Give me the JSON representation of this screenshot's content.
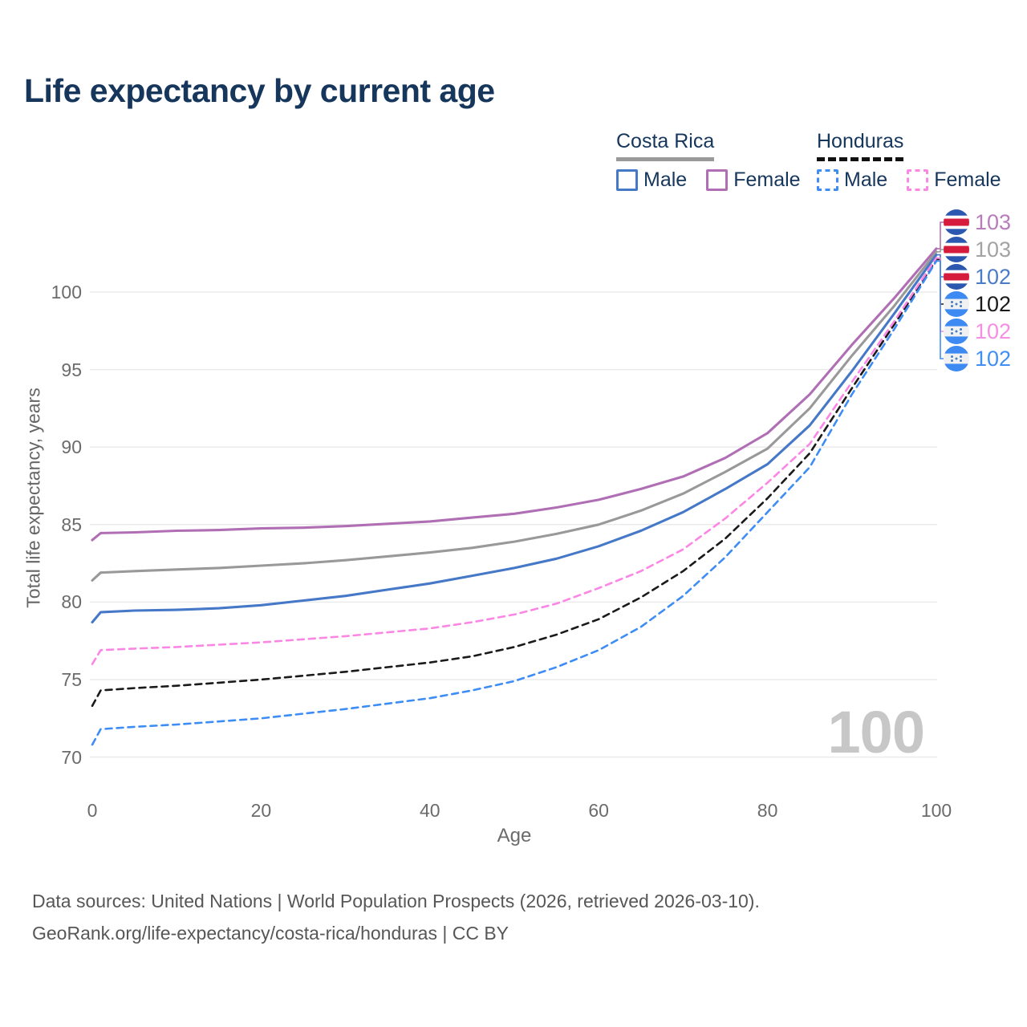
{
  "title": "Life expectancy by current age",
  "legend": {
    "groups": [
      {
        "label": "Costa Rica",
        "line_style": "solid",
        "underline_color": "#9a9a9a",
        "items": [
          {
            "label": "Male",
            "color": "#4678c8",
            "dashed": false
          },
          {
            "label": "Female",
            "color": "#b06fb4",
            "dashed": false
          }
        ]
      },
      {
        "label": "Honduras",
        "line_style": "dashed",
        "underline_color": "#111111",
        "items": [
          {
            "label": "Male",
            "color": "#3e8df5",
            "dashed": true
          },
          {
            "label": "Female",
            "color": "#fb87e5",
            "dashed": true
          }
        ]
      }
    ]
  },
  "chart_data": {
    "type": "line",
    "title": "Life expectancy by current age",
    "xlabel": "Age",
    "ylabel": "Total life expectancy, years",
    "xlim": [
      0,
      100
    ],
    "ylim": [
      70,
      103
    ],
    "xticks": [
      0,
      20,
      40,
      60,
      80,
      100
    ],
    "yticks": [
      70,
      75,
      80,
      85,
      90,
      95,
      100
    ],
    "grid": "horizontal-only",
    "gridline_color": "#ebebeb",
    "watermark": "100",
    "x": [
      0,
      1,
      5,
      10,
      15,
      20,
      25,
      30,
      35,
      40,
      45,
      50,
      55,
      60,
      65,
      70,
      75,
      80,
      85,
      90,
      95,
      100
    ],
    "series": [
      {
        "name": "Costa Rica Female",
        "country": "Costa Rica",
        "sex": "Female",
        "color": "#b06fb4",
        "dashed": false,
        "end_label": "103",
        "end_label_color": "#b87cba",
        "flag": "costa-rica",
        "values": [
          84.0,
          84.45,
          84.5,
          84.6,
          84.65,
          84.75,
          84.8,
          84.9,
          85.05,
          85.2,
          85.45,
          85.7,
          86.1,
          86.6,
          87.3,
          88.1,
          89.3,
          90.9,
          93.4,
          96.6,
          99.6,
          102.8
        ]
      },
      {
        "name": "Costa Rica",
        "country": "Costa Rica",
        "sex": "Both",
        "color": "#999999",
        "dashed": false,
        "end_label": "103",
        "end_label_color": "#a3a3a3",
        "flag": "costa-rica",
        "values": [
          81.4,
          81.9,
          82.0,
          82.1,
          82.2,
          82.35,
          82.5,
          82.7,
          82.95,
          83.2,
          83.5,
          83.9,
          84.4,
          85.0,
          85.9,
          87.0,
          88.4,
          89.9,
          92.5,
          95.9,
          99.1,
          102.6
        ]
      },
      {
        "name": "Costa Rica Male",
        "country": "Costa Rica",
        "sex": "Male",
        "color": "#4678c8",
        "dashed": false,
        "end_label": "102",
        "end_label_color": "#4a7cc7",
        "flag": "costa-rica",
        "values": [
          78.7,
          79.35,
          79.45,
          79.5,
          79.6,
          79.8,
          80.1,
          80.4,
          80.8,
          81.2,
          81.7,
          82.2,
          82.8,
          83.6,
          84.6,
          85.8,
          87.3,
          88.9,
          91.4,
          94.9,
          98.6,
          102.4
        ]
      },
      {
        "name": "Honduras",
        "country": "Honduras",
        "sex": "Both",
        "color": "#1a1a1a",
        "dashed": true,
        "end_label": "102",
        "end_label_color": "#1a1a1a",
        "flag": "honduras",
        "values": [
          73.3,
          74.3,
          74.45,
          74.6,
          74.8,
          75.0,
          75.25,
          75.5,
          75.8,
          76.1,
          76.5,
          77.1,
          77.9,
          78.9,
          80.3,
          82.0,
          84.1,
          86.7,
          89.6,
          93.8,
          97.9,
          102.1
        ]
      },
      {
        "name": "Honduras Female",
        "country": "Honduras",
        "sex": "Female",
        "color": "#fb87e5",
        "dashed": true,
        "end_label": "102",
        "end_label_color": "#f48fe3",
        "flag": "honduras",
        "values": [
          76.0,
          76.9,
          77.0,
          77.1,
          77.25,
          77.4,
          77.6,
          77.8,
          78.05,
          78.3,
          78.7,
          79.2,
          79.9,
          80.9,
          82.0,
          83.4,
          85.4,
          87.7,
          90.2,
          94.2,
          98.1,
          102.2
        ]
      },
      {
        "name": "Honduras Male",
        "country": "Honduras",
        "sex": "Male",
        "color": "#3e8df5",
        "dashed": true,
        "end_label": "102",
        "end_label_color": "#418ef5",
        "flag": "honduras",
        "values": [
          70.8,
          71.8,
          71.95,
          72.1,
          72.3,
          72.5,
          72.8,
          73.1,
          73.45,
          73.8,
          74.3,
          74.9,
          75.8,
          76.9,
          78.4,
          80.4,
          82.9,
          85.8,
          88.7,
          93.4,
          97.6,
          102.0
        ]
      }
    ],
    "flag_colors": {
      "costa_rica_blue": "#2b57b0",
      "costa_rica_red": "#d51c3c",
      "honduras_blue": "#3d8af2",
      "honduras_star": "#4a7ec2"
    }
  },
  "footer": {
    "line1": "Data sources: United Nations | World Population Prospects (2026, retrieved 2026-03-10).",
    "line2": "GeoRank.org/life-expectancy/costa-rica/honduras | CC BY"
  }
}
